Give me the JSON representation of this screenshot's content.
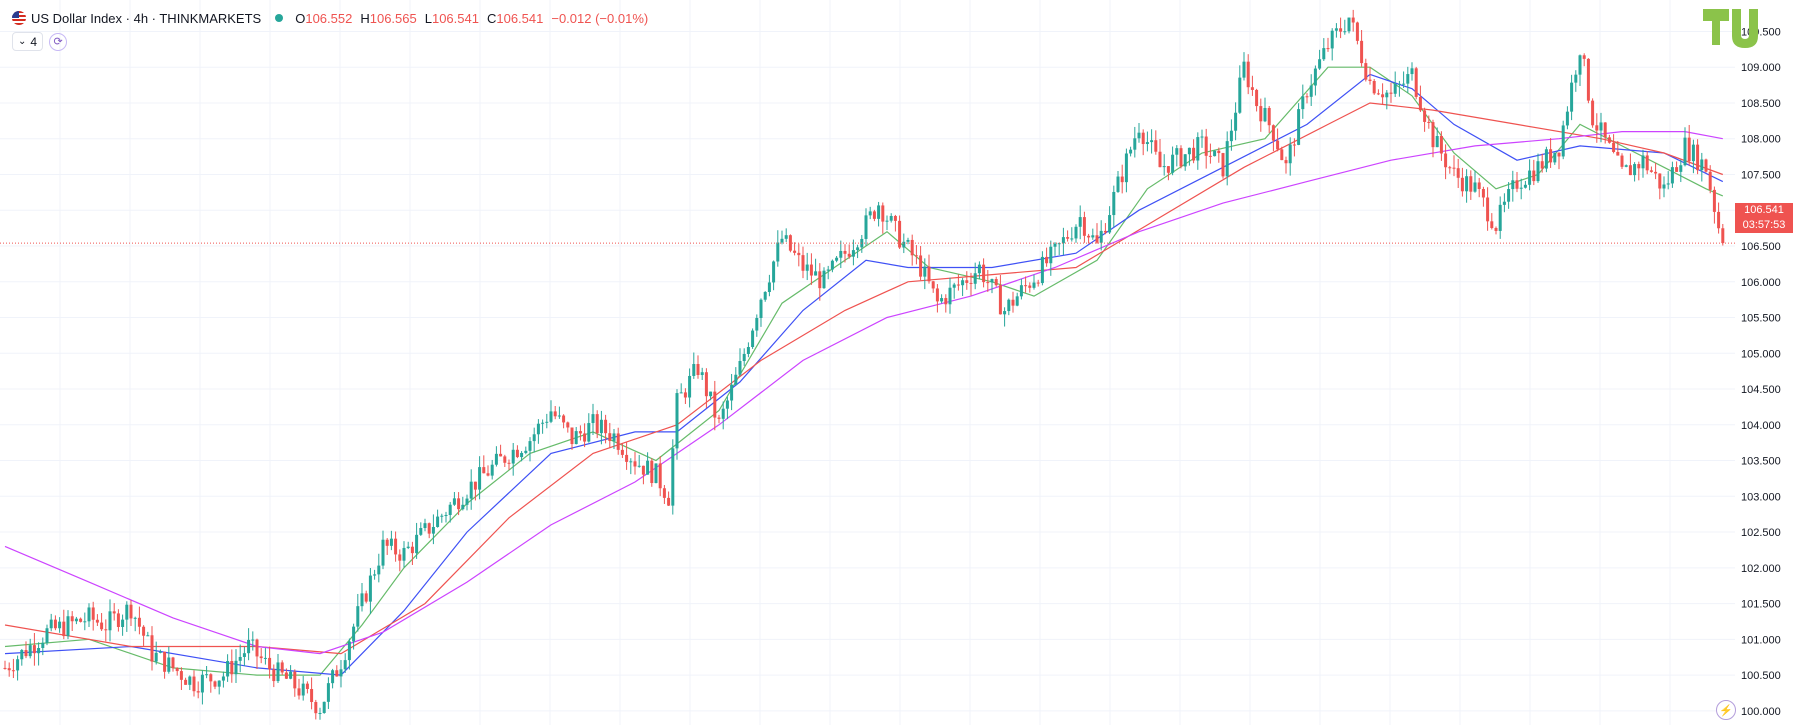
{
  "header": {
    "symbol": "US Dollar Index · 4h · THINKMARKETS",
    "o_label": "O",
    "o_value": "106.552",
    "h_label": "H",
    "h_value": "106.565",
    "l_label": "L",
    "l_value": "106.541",
    "c_label": "C",
    "c_value": "106.541",
    "change": "−0.012 (−0.01%)"
  },
  "indicator_toggle": {
    "label": "4"
  },
  "last_price": {
    "value": "106.541",
    "countdown": "03:57:53"
  },
  "colors": {
    "up": "#26a69a",
    "down": "#ef5350",
    "ma_green": "#66bb6a",
    "ma_blue": "#3f51f5",
    "ma_red": "#ef5350",
    "ma_violet": "#cc44ff",
    "logo": "#8bc34a"
  },
  "chart_data": {
    "type": "candlestick",
    "title": "US Dollar Index · 4h · THINKMARKETS",
    "yaxis_ticks": [
      "100.000",
      "100.500",
      "101.000",
      "101.500",
      "102.000",
      "102.500",
      "103.000",
      "103.500",
      "104.000",
      "104.500",
      "105.000",
      "105.500",
      "106.000",
      "106.500",
      "107.000",
      "107.500",
      "108.000",
      "108.500",
      "109.000",
      "109.500"
    ],
    "ylim": [
      99.9,
      109.8
    ],
    "last_close": 106.541,
    "path_points": [
      [
        0,
        100.6
      ],
      [
        10,
        101.1
      ],
      [
        20,
        101.3
      ],
      [
        24,
        101.2
      ],
      [
        30,
        101.45
      ],
      [
        35,
        100.8
      ],
      [
        40,
        100.6
      ],
      [
        45,
        100.4
      ],
      [
        52,
        100.5
      ],
      [
        58,
        100.9
      ],
      [
        63,
        100.6
      ],
      [
        68,
        100.4
      ],
      [
        72,
        100.2
      ],
      [
        75,
        100.05
      ],
      [
        80,
        100.7
      ],
      [
        85,
        101.5
      ],
      [
        90,
        102.3
      ],
      [
        95,
        102.2
      ],
      [
        100,
        102.5
      ],
      [
        110,
        103.1
      ],
      [
        120,
        103.6
      ],
      [
        125,
        103.8
      ],
      [
        130,
        104.2
      ],
      [
        135,
        103.8
      ],
      [
        140,
        104.0
      ],
      [
        145,
        103.85
      ],
      [
        150,
        103.5
      ],
      [
        155,
        103.3
      ],
      [
        158,
        103.0
      ],
      [
        160,
        104.3
      ],
      [
        165,
        104.8
      ],
      [
        170,
        104.0
      ],
      [
        175,
        104.8
      ],
      [
        180,
        105.8
      ],
      [
        185,
        106.6
      ],
      [
        190,
        106.2
      ],
      [
        195,
        106.0
      ],
      [
        200,
        106.4
      ],
      [
        205,
        106.8
      ],
      [
        208,
        107.1
      ],
      [
        212,
        106.7
      ],
      [
        218,
        106.2
      ],
      [
        222,
        105.7
      ],
      [
        226,
        105.9
      ],
      [
        232,
        106.2
      ],
      [
        238,
        105.6
      ],
      [
        244,
        106.0
      ],
      [
        250,
        106.4
      ],
      [
        256,
        106.9
      ],
      [
        260,
        106.5
      ],
      [
        270,
        108.2
      ],
      [
        275,
        107.6
      ],
      [
        285,
        107.9
      ],
      [
        290,
        107.6
      ],
      [
        295,
        109.0
      ],
      [
        298,
        108.5
      ],
      [
        302,
        108.1
      ],
      [
        305,
        107.6
      ],
      [
        310,
        108.7
      ],
      [
        315,
        109.3
      ],
      [
        320,
        109.7
      ],
      [
        325,
        108.8
      ],
      [
        330,
        108.6
      ],
      [
        335,
        108.9
      ],
      [
        340,
        108.0
      ],
      [
        345,
        107.5
      ],
      [
        350,
        107.3
      ],
      [
        355,
        106.8
      ],
      [
        360,
        107.4
      ],
      [
        365,
        107.6
      ],
      [
        370,
        107.9
      ],
      [
        375,
        109.3
      ],
      [
        378,
        108.3
      ],
      [
        385,
        107.5
      ],
      [
        390,
        107.7
      ],
      [
        395,
        107.3
      ],
      [
        400,
        107.9
      ],
      [
        405,
        107.6
      ],
      [
        409,
        106.5
      ]
    ],
    "moving_averages": [
      {
        "color_key": "ma_green",
        "points": [
          [
            0,
            100.9
          ],
          [
            20,
            101.0
          ],
          [
            40,
            100.6
          ],
          [
            60,
            100.5
          ],
          [
            75,
            100.5
          ],
          [
            85,
            101.2
          ],
          [
            95,
            102.0
          ],
          [
            110,
            102.9
          ],
          [
            125,
            103.6
          ],
          [
            140,
            103.9
          ],
          [
            155,
            103.5
          ],
          [
            170,
            104.2
          ],
          [
            185,
            105.7
          ],
          [
            200,
            106.3
          ],
          [
            210,
            106.7
          ],
          [
            220,
            106.2
          ],
          [
            235,
            106.0
          ],
          [
            245,
            105.8
          ],
          [
            260,
            106.3
          ],
          [
            272,
            107.3
          ],
          [
            285,
            107.8
          ],
          [
            300,
            108.0
          ],
          [
            315,
            109.0
          ],
          [
            325,
            109.0
          ],
          [
            335,
            108.6
          ],
          [
            345,
            107.8
          ],
          [
            355,
            107.3
          ],
          [
            365,
            107.5
          ],
          [
            375,
            108.2
          ],
          [
            385,
            107.9
          ],
          [
            395,
            107.6
          ],
          [
            405,
            107.3
          ],
          [
            409,
            107.2
          ]
        ]
      },
      {
        "color_key": "ma_blue",
        "points": [
          [
            0,
            100.8
          ],
          [
            30,
            100.9
          ],
          [
            60,
            100.6
          ],
          [
            80,
            100.5
          ],
          [
            95,
            101.4
          ],
          [
            110,
            102.5
          ],
          [
            130,
            103.6
          ],
          [
            150,
            103.9
          ],
          [
            160,
            103.9
          ],
          [
            175,
            104.6
          ],
          [
            190,
            105.6
          ],
          [
            205,
            106.3
          ],
          [
            215,
            106.2
          ],
          [
            235,
            106.2
          ],
          [
            255,
            106.4
          ],
          [
            270,
            107.0
          ],
          [
            290,
            107.6
          ],
          [
            310,
            108.2
          ],
          [
            325,
            108.9
          ],
          [
            335,
            108.7
          ],
          [
            345,
            108.2
          ],
          [
            360,
            107.7
          ],
          [
            375,
            107.9
          ],
          [
            395,
            107.8
          ],
          [
            409,
            107.4
          ]
        ]
      },
      {
        "color_key": "ma_red",
        "points": [
          [
            0,
            101.2
          ],
          [
            30,
            100.9
          ],
          [
            60,
            100.9
          ],
          [
            80,
            100.8
          ],
          [
            100,
            101.5
          ],
          [
            120,
            102.7
          ],
          [
            140,
            103.6
          ],
          [
            160,
            104.0
          ],
          [
            180,
            104.9
          ],
          [
            200,
            105.6
          ],
          [
            215,
            106.0
          ],
          [
            235,
            106.1
          ],
          [
            255,
            106.2
          ],
          [
            275,
            106.9
          ],
          [
            295,
            107.6
          ],
          [
            315,
            108.2
          ],
          [
            325,
            108.5
          ],
          [
            340,
            108.4
          ],
          [
            360,
            108.2
          ],
          [
            380,
            108.0
          ],
          [
            395,
            107.8
          ],
          [
            409,
            107.5
          ]
        ]
      },
      {
        "color_key": "ma_violet",
        "points": [
          [
            0,
            102.3
          ],
          [
            20,
            101.8
          ],
          [
            40,
            101.3
          ],
          [
            60,
            100.9
          ],
          [
            75,
            100.8
          ],
          [
            90,
            101.1
          ],
          [
            110,
            101.8
          ],
          [
            130,
            102.6
          ],
          [
            150,
            103.2
          ],
          [
            170,
            104.0
          ],
          [
            190,
            104.9
          ],
          [
            210,
            105.5
          ],
          [
            230,
            105.8
          ],
          [
            250,
            106.2
          ],
          [
            270,
            106.7
          ],
          [
            290,
            107.1
          ],
          [
            310,
            107.4
          ],
          [
            330,
            107.7
          ],
          [
            350,
            107.9
          ],
          [
            370,
            108.0
          ],
          [
            385,
            108.1
          ],
          [
            400,
            108.1
          ],
          [
            409,
            108.0
          ]
        ]
      }
    ]
  }
}
